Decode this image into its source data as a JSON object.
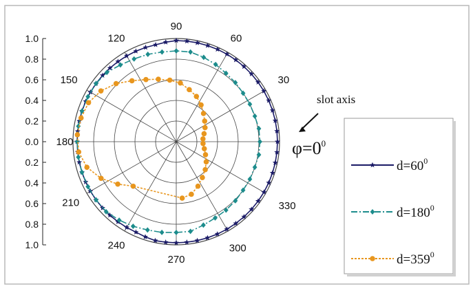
{
  "chart_data": {
    "type": "polar-line",
    "title": "",
    "radial_range": [
      0,
      1.0
    ],
    "radial_ticks": [
      "1.0",
      "0.8",
      "0.6",
      "0.4",
      "0.2",
      "0.0",
      "0.2",
      "0.4",
      "0.6",
      "0.8",
      "1.0"
    ],
    "angle_ticks": [
      "90",
      "60",
      "30",
      "330",
      "300",
      "270",
      "240",
      "210",
      "180",
      "150",
      "120"
    ],
    "annotations": {
      "slot_axis": "slot axis",
      "phi_label": "φ=0",
      "phi_sup": "0"
    },
    "series": [
      {
        "name": "d=60",
        "name_sup": "0",
        "color": "#1a1a66",
        "marker": "star",
        "dash": "",
        "angles_deg": [
          -90,
          -84,
          -78,
          -72,
          -66,
          -60,
          -54,
          -48,
          -42,
          -36,
          -30,
          -24,
          -18,
          -12,
          -6,
          0,
          6,
          12,
          18,
          24,
          30,
          36,
          42,
          48,
          54,
          60,
          66,
          72,
          78,
          84,
          90,
          96,
          102,
          108,
          114,
          120,
          126,
          132,
          138,
          144,
          150,
          156,
          162,
          168,
          174,
          180,
          186,
          192,
          198,
          204,
          210,
          216,
          222,
          228,
          234,
          240,
          246,
          252,
          258,
          264
        ],
        "r": [
          0.98,
          0.98,
          0.98,
          0.98,
          0.98,
          0.98,
          0.98,
          0.98,
          0.98,
          0.98,
          0.98,
          0.98,
          0.98,
          0.98,
          0.98,
          0.98,
          0.98,
          0.98,
          0.98,
          0.98,
          0.98,
          0.98,
          0.98,
          0.98,
          0.98,
          0.98,
          0.98,
          0.98,
          0.98,
          0.98,
          0.98,
          0.97,
          0.96,
          0.96,
          0.96,
          0.96,
          0.96,
          0.96,
          0.96,
          0.96,
          0.96,
          0.96,
          0.96,
          0.96,
          0.96,
          0.96,
          0.96,
          0.96,
          0.96,
          0.96,
          0.96,
          0.96,
          0.96,
          0.96,
          0.96,
          0.96,
          0.96,
          0.97,
          0.98,
          0.98
        ]
      },
      {
        "name": "d=180",
        "name_sup": "0",
        "color": "#1c8c8c",
        "marker": "diamond",
        "dash": "9 3 2 3",
        "angles_deg": [
          -90,
          -81,
          -72,
          -63,
          -54,
          -45,
          -36,
          -27,
          -18,
          -9,
          0,
          9,
          18,
          27,
          36,
          45,
          54,
          63,
          72,
          81,
          90,
          99,
          108,
          117,
          126,
          135,
          144,
          153,
          162,
          171,
          180,
          189,
          198,
          207,
          216,
          225,
          234,
          243,
          252,
          261
        ],
        "r": [
          0.88,
          0.88,
          0.85,
          0.83,
          0.82,
          0.81,
          0.8,
          0.8,
          0.8,
          0.81,
          0.81,
          0.81,
          0.8,
          0.8,
          0.8,
          0.81,
          0.82,
          0.84,
          0.86,
          0.88,
          0.88,
          0.88,
          0.89,
          0.9,
          0.92,
          0.95,
          0.96,
          0.96,
          0.96,
          0.96,
          0.96,
          0.96,
          0.96,
          0.96,
          0.96,
          0.96,
          0.94,
          0.92,
          0.9,
          0.89
        ]
      },
      {
        "name": "d=359",
        "name_sup": "0",
        "color": "#e8961e",
        "marker": "circle",
        "dash": "3 2",
        "angles_deg": [
          -84,
          -74,
          -64,
          -54,
          -44,
          -34,
          -24,
          -14,
          -4,
          6,
          16,
          26,
          36,
          46,
          56,
          66,
          76,
          86,
          96,
          106,
          116,
          126,
          136,
          146,
          156,
          166,
          176,
          186,
          196,
          206,
          216,
          226
        ],
        "r": [
          0.55,
          0.53,
          0.48,
          0.43,
          0.39,
          0.35,
          0.31,
          0.28,
          0.26,
          0.26,
          0.28,
          0.31,
          0.34,
          0.38,
          0.43,
          0.48,
          0.52,
          0.57,
          0.6,
          0.63,
          0.67,
          0.73,
          0.81,
          0.88,
          0.93,
          0.95,
          0.96,
          0.95,
          0.9,
          0.81,
          0.7,
          0.6
        ]
      }
    ]
  }
}
